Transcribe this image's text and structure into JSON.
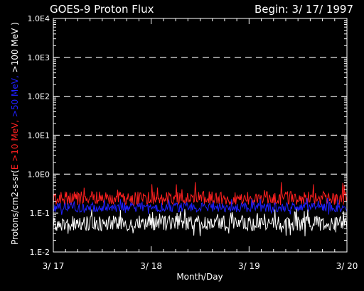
{
  "chart_data": {
    "type": "line",
    "title_left": "GOES-9 Proton Flux",
    "title_right": "Begin: 3/ 17/ 1997",
    "xlabel": "Month/Day",
    "ylabel_parts": [
      {
        "text": "Protons/cm2-s-sr(",
        "color": "#ffffff"
      },
      {
        "text": "E >10 MeV, ",
        "color": "#ff2020"
      },
      {
        "text": ">50 MeV, ",
        "color": "#2020ff"
      },
      {
        "text": ">100 MeV )",
        "color": "#ffffff"
      }
    ],
    "x_ticks": [
      "3/ 17",
      "3/ 18",
      "3/ 19",
      "3/ 20"
    ],
    "x_range_days": [
      0,
      3
    ],
    "y_scale": "log",
    "y_range": [
      0.01,
      10000
    ],
    "y_ticks": [
      {
        "value": 0.01,
        "label": "1.E-2"
      },
      {
        "value": 0.1,
        "label": "1.E-1"
      },
      {
        "value": 1,
        "label": "1.0E0"
      },
      {
        "value": 10,
        "label": "1.0E1"
      },
      {
        "value": 100,
        "label": "1.0E2"
      },
      {
        "value": 1000,
        "label": "1.0E3"
      },
      {
        "value": 10000,
        "label": "1.0E4"
      }
    ],
    "dashed_gridlines": [
      1,
      10,
      100,
      1000
    ],
    "series": [
      {
        "color": "#ff2020",
        "typical": 0.24,
        "min": 0.15,
        "max": 0.65
      },
      {
        "color": "#2020ff",
        "typical": 0.14,
        "min": 0.09,
        "max": 0.25
      },
      {
        "color": "#ffffff",
        "typical": 0.055,
        "min": 0.025,
        "max": 0.13
      }
    ]
  }
}
